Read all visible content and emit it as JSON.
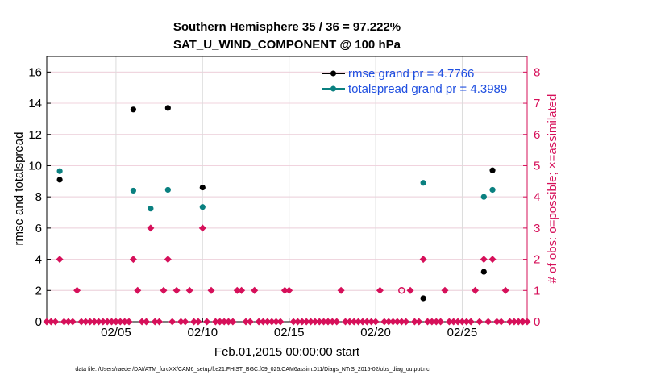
{
  "chart_data": {
    "type": "scatter",
    "title_line1": "Southern Hemisphere 35 / 36 = 97.222%",
    "title_line2": "SAT_U_WIND_COMPONENT @ 100 hPa",
    "xlabel": "Feb.01,2015 00:00:00 start",
    "ylabel_left": "rmse and totalspread",
    "ylabel_right": "# of obs: o=possible; ×=assimilated",
    "footnote": "data file: /Users/raeder/DAI/ATM_forcXX/CAM6_setup/f.e21.FHIST_BGC.f09_025.CAM6assim.011/Diags_NTrS_2015-02/obs_diag_output.nc",
    "xlim": [
      1.0,
      28.75
    ],
    "ylim_left": [
      0,
      17
    ],
    "ylim_right": [
      0,
      8.5
    ],
    "x_ticks": [
      {
        "value": 5,
        "label": "02/05"
      },
      {
        "value": 10,
        "label": "02/10"
      },
      {
        "value": 15,
        "label": "02/15"
      },
      {
        "value": 20,
        "label": "02/20"
      },
      {
        "value": 25,
        "label": "02/25"
      }
    ],
    "y_ticks_left": [
      0,
      2,
      4,
      6,
      8,
      10,
      12,
      14,
      16
    ],
    "y_ticks_right": [
      0,
      1,
      2,
      3,
      4,
      5,
      6,
      7,
      8
    ],
    "colors": {
      "rmse": "#000000",
      "spread": "#0a8080",
      "obs": "#d6105a",
      "legend_text": "#1f4fe0",
      "grid": "#dcdcdc"
    },
    "series": [
      {
        "name": "rmse grand pr = 4.7766",
        "key": "rmse",
        "points": [
          [
            1.75,
            9.1
          ],
          [
            6.0,
            13.6
          ],
          [
            8.0,
            13.7
          ],
          [
            10.0,
            8.6
          ],
          [
            22.75,
            1.5
          ],
          [
            26.25,
            3.2
          ],
          [
            26.75,
            9.7
          ]
        ]
      },
      {
        "name": "totalspread grand pr = 4.3989",
        "key": "spread",
        "points": [
          [
            1.75,
            9.65
          ],
          [
            6.0,
            8.4
          ],
          [
            7.0,
            7.25
          ],
          [
            8.0,
            8.45
          ],
          [
            10.0,
            7.35
          ],
          [
            22.75,
            8.9
          ],
          [
            26.25,
            8.0
          ],
          [
            26.75,
            8.45
          ]
        ]
      }
    ],
    "obs_assimilated": [
      [
        1.0,
        0
      ],
      [
        1.25,
        0
      ],
      [
        1.5,
        0
      ],
      [
        1.75,
        2
      ],
      [
        2.0,
        0
      ],
      [
        2.25,
        0
      ],
      [
        2.5,
        0
      ],
      [
        2.75,
        1
      ],
      [
        3.0,
        0
      ],
      [
        3.25,
        0
      ],
      [
        3.5,
        0
      ],
      [
        3.75,
        0
      ],
      [
        4.0,
        0
      ],
      [
        4.25,
        0
      ],
      [
        4.5,
        0
      ],
      [
        4.75,
        0
      ],
      [
        5.0,
        0
      ],
      [
        5.25,
        0
      ],
      [
        5.5,
        0
      ],
      [
        5.75,
        0
      ],
      [
        6.0,
        2
      ],
      [
        6.25,
        1
      ],
      [
        6.5,
        0
      ],
      [
        6.75,
        0
      ],
      [
        7.0,
        3
      ],
      [
        7.25,
        0
      ],
      [
        7.5,
        0
      ],
      [
        7.75,
        1
      ],
      [
        8.0,
        2
      ],
      [
        8.25,
        0
      ],
      [
        8.5,
        1
      ],
      [
        8.75,
        0
      ],
      [
        9.0,
        0
      ],
      [
        9.25,
        1
      ],
      [
        9.5,
        0
      ],
      [
        9.75,
        0
      ],
      [
        10.0,
        3
      ],
      [
        10.25,
        0
      ],
      [
        10.5,
        1
      ],
      [
        10.75,
        0
      ],
      [
        11.0,
        0
      ],
      [
        11.25,
        0
      ],
      [
        11.5,
        0
      ],
      [
        11.75,
        0
      ],
      [
        12.0,
        1
      ],
      [
        12.25,
        1
      ],
      [
        12.5,
        0
      ],
      [
        12.75,
        0
      ],
      [
        13.0,
        1
      ],
      [
        13.25,
        0
      ],
      [
        13.5,
        0
      ],
      [
        13.75,
        0
      ],
      [
        14.0,
        0
      ],
      [
        14.25,
        0
      ],
      [
        14.5,
        0
      ],
      [
        14.75,
        1
      ],
      [
        15.0,
        1
      ],
      [
        15.25,
        0
      ],
      [
        15.5,
        0
      ],
      [
        15.75,
        0
      ],
      [
        16.0,
        0
      ],
      [
        16.25,
        0
      ],
      [
        16.5,
        0
      ],
      [
        16.75,
        0
      ],
      [
        17.0,
        0
      ],
      [
        17.25,
        0
      ],
      [
        17.5,
        0
      ],
      [
        17.75,
        0
      ],
      [
        18.0,
        1
      ],
      [
        18.25,
        0
      ],
      [
        18.5,
        0
      ],
      [
        18.75,
        0
      ],
      [
        19.0,
        0
      ],
      [
        19.25,
        0
      ],
      [
        19.5,
        0
      ],
      [
        19.75,
        0
      ],
      [
        20.0,
        0
      ],
      [
        20.25,
        1
      ],
      [
        20.5,
        0
      ],
      [
        20.75,
        0
      ],
      [
        21.0,
        0
      ],
      [
        21.25,
        0
      ],
      [
        21.5,
        0
      ],
      [
        21.75,
        0
      ],
      [
        22.0,
        1
      ],
      [
        22.25,
        0
      ],
      [
        22.5,
        0
      ],
      [
        22.75,
        2
      ],
      [
        23.0,
        0
      ],
      [
        23.25,
        0
      ],
      [
        23.5,
        0
      ],
      [
        23.75,
        0
      ],
      [
        24.0,
        1
      ],
      [
        24.25,
        0
      ],
      [
        24.5,
        0
      ],
      [
        24.75,
        0
      ],
      [
        25.0,
        0
      ],
      [
        25.25,
        0
      ],
      [
        25.5,
        0
      ],
      [
        25.75,
        1
      ],
      [
        26.0,
        0
      ],
      [
        26.25,
        2
      ],
      [
        26.5,
        0
      ],
      [
        26.75,
        2
      ],
      [
        27.0,
        0
      ],
      [
        27.25,
        0
      ],
      [
        27.5,
        1
      ],
      [
        27.75,
        0
      ],
      [
        28.0,
        0
      ],
      [
        28.25,
        0
      ],
      [
        28.5,
        0
      ],
      [
        28.75,
        0
      ]
    ],
    "obs_possible": [
      [
        21.5,
        1
      ]
    ]
  }
}
